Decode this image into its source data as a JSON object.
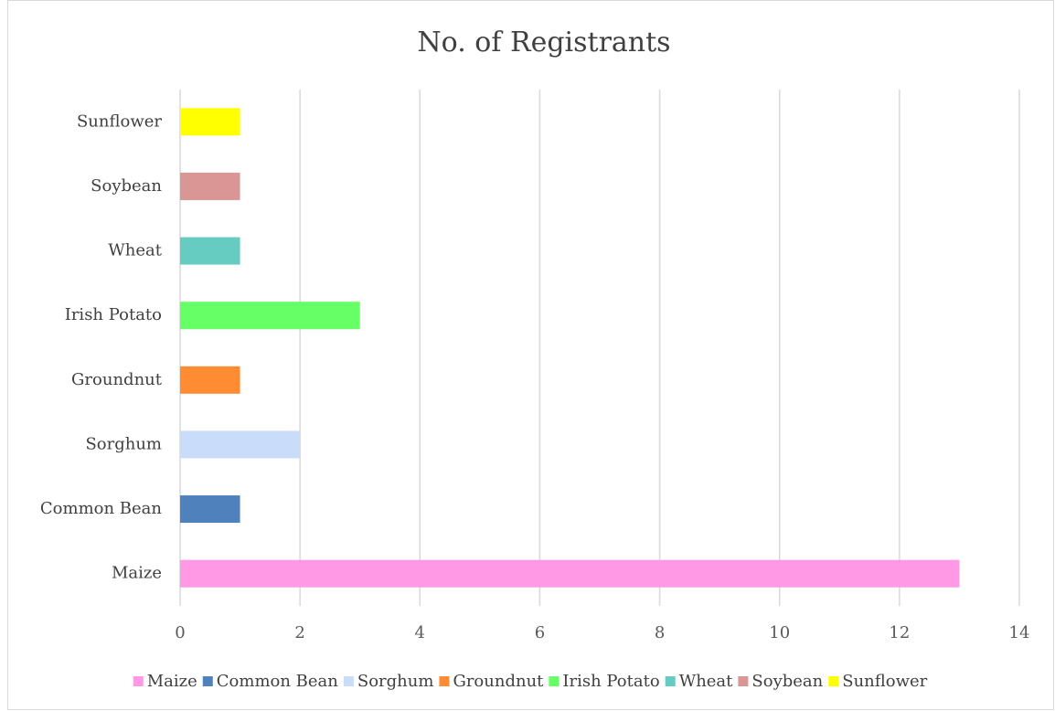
{
  "chart_data": {
    "type": "bar",
    "orientation": "horizontal",
    "title": "No. of Registrants",
    "categories": [
      "Maize",
      "Common Bean",
      "Sorghum",
      "Groundnut",
      "Irish Potato",
      "Wheat",
      "Soybean",
      "Sunflower"
    ],
    "values": [
      13,
      1,
      2,
      1,
      3,
      1,
      1,
      1
    ],
    "colors": [
      "#ff99e6",
      "#4f81bd",
      "#c9dcfa",
      "#ff8c33",
      "#66ff66",
      "#66ccc2",
      "#d99694",
      "#ffff00"
    ],
    "xlim": [
      0,
      14
    ],
    "xticks": [
      0,
      2,
      4,
      6,
      8,
      10,
      12,
      14
    ],
    "grid": true,
    "legend": "bottom"
  }
}
